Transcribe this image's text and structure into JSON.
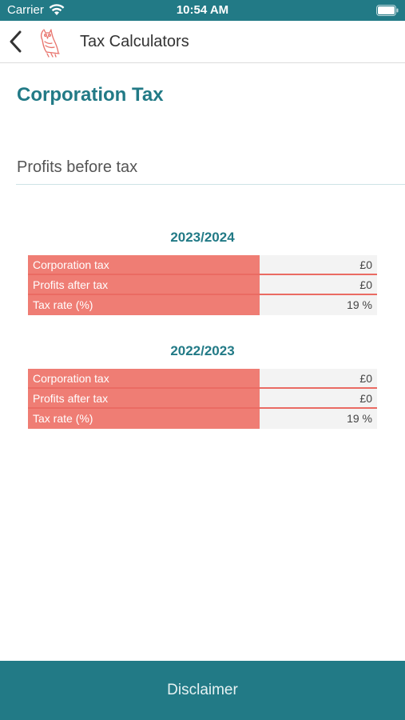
{
  "status_bar": {
    "carrier": "Carrier",
    "time": "10:54 AM"
  },
  "nav": {
    "title": "Tax Calculators"
  },
  "page": {
    "title": "Corporation Tax"
  },
  "input": {
    "placeholder": "Profits before tax",
    "value": ""
  },
  "sections": [
    {
      "year": "2023/2024",
      "rows": [
        {
          "label": "Corporation tax",
          "value": "£0"
        },
        {
          "label": "Profits after tax",
          "value": "£0"
        },
        {
          "label": "Tax rate (%)",
          "value": "19 %"
        }
      ]
    },
    {
      "year": "2022/2023",
      "rows": [
        {
          "label": "Corporation tax",
          "value": "£0"
        },
        {
          "label": "Profits after tax",
          "value": "£0"
        },
        {
          "label": "Tax rate (%)",
          "value": "19 %"
        }
      ]
    }
  ],
  "footer": {
    "label": "Disclaimer"
  },
  "icons": {
    "back": "chevron-left-icon",
    "logo": "owl-logo-icon",
    "wifi": "wifi-icon",
    "battery": "battery-icon"
  },
  "colors": {
    "primary": "#227a86",
    "label_cell": "#ef7d74",
    "value_cell": "#f3f3f3"
  }
}
